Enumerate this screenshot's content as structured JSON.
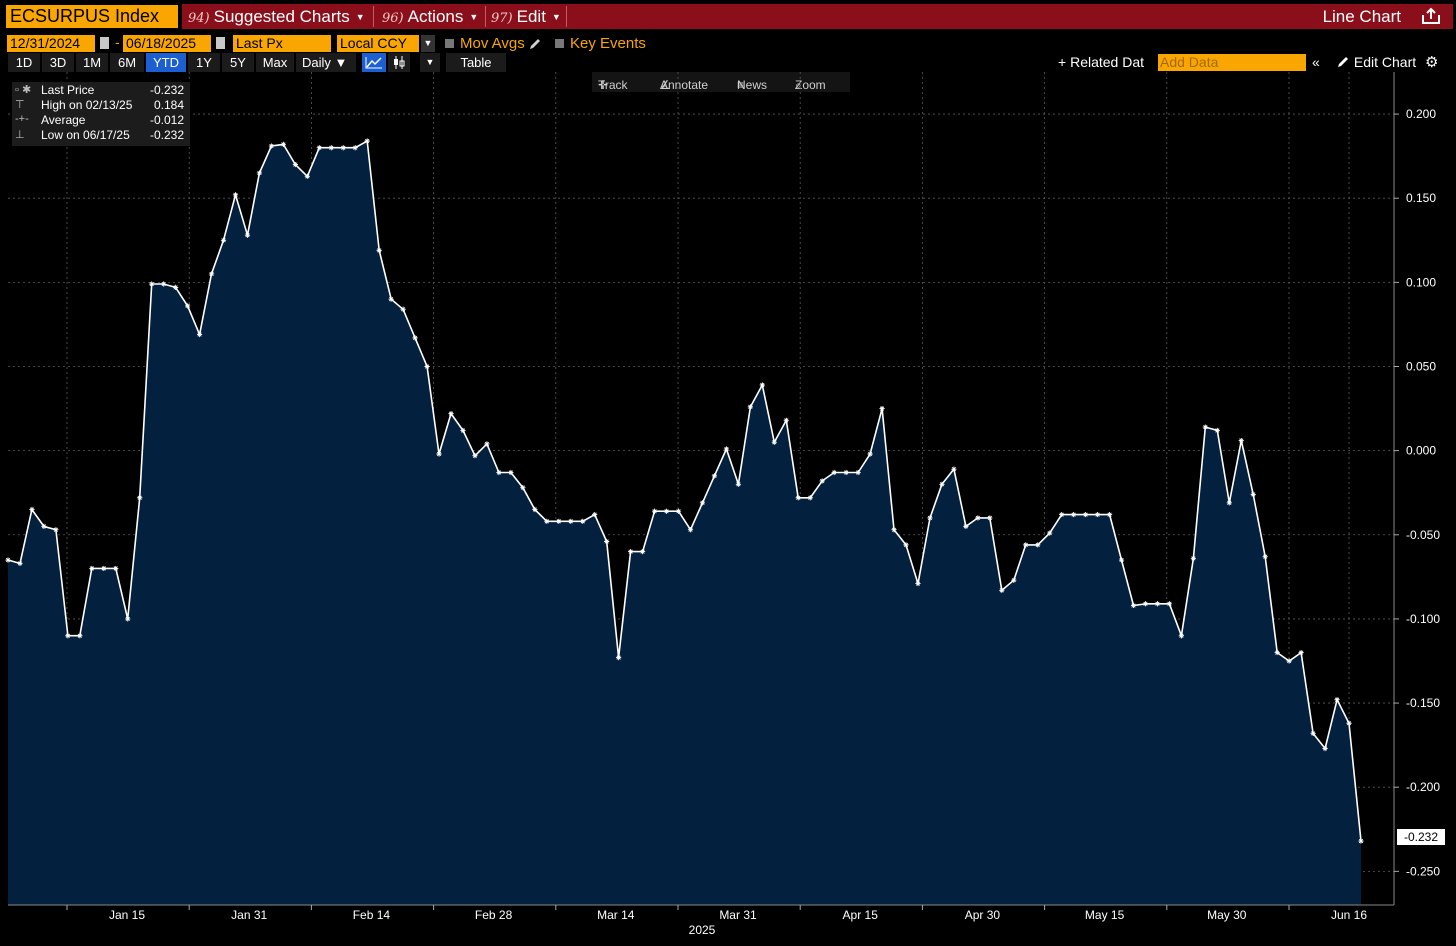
{
  "header": {
    "ticker": "ECSURPUS Index",
    "menus": [
      {
        "num": "94)",
        "label": "Suggested Charts"
      },
      {
        "num": "96)",
        "label": "Actions"
      },
      {
        "num": "97)",
        "label": "Edit"
      }
    ],
    "chart_type_label": "Line Chart"
  },
  "options": {
    "start_date": "12/31/2024",
    "end_date": "06/18/2025",
    "field": "Last Px",
    "currency": "Local CCY",
    "mov_avgs": "Mov Avgs",
    "key_events": "Key Events"
  },
  "periods": [
    "1D",
    "3D",
    "1M",
    "6M",
    "YTD",
    "1Y",
    "5Y",
    "Max"
  ],
  "active_period": "YTD",
  "frequency": "Daily",
  "table_label": "Table",
  "related_data_label": "Related Dat",
  "add_data_placeholder": "Add Data",
  "edit_chart_label": "Edit Chart",
  "toolbar": {
    "track": "Track",
    "annotate": "Annotate",
    "news": "News",
    "zoom": "Zoom"
  },
  "legend": [
    {
      "label": "Last Price",
      "value": "-0.232"
    },
    {
      "label": "High on 02/13/25",
      "value": "0.184"
    },
    {
      "label": "Average",
      "value": "-0.012"
    },
    {
      "label": "Low on 06/17/25",
      "value": "-0.232"
    }
  ],
  "last_value_tag": "-0.232",
  "colors": {
    "line": "#ffffff",
    "fill": "#04203f",
    "grid": "#5a5a5a",
    "accent": "#f9a600",
    "header": "#8b0f1b",
    "active": "#1b5fd0"
  },
  "chart_data": {
    "type": "area",
    "x_tick_labels": [
      "Jan 15",
      "Jan 31",
      "Feb 14",
      "Feb 28",
      "Mar 14",
      "Mar 31",
      "Apr 15",
      "Apr 30",
      "May 15",
      "May 30",
      "Jun 16"
    ],
    "x_year_label": "2025",
    "y_ticks": [
      0.2,
      0.15,
      0.1,
      0.05,
      0.0,
      -0.05,
      -0.1,
      -0.15,
      -0.2,
      -0.25
    ],
    "y_tick_labels": [
      "0.200",
      "0.150",
      "0.100",
      "0.050",
      "0.000",
      "-0.050",
      "-0.100",
      "-0.150",
      "-0.200",
      "-0.250"
    ],
    "ylim": [
      -0.27,
      0.225
    ],
    "grid": true,
    "series": [
      {
        "values": [
          -0.065,
          -0.067,
          -0.035,
          -0.045,
          -0.047,
          -0.11,
          -0.11,
          -0.07,
          -0.07,
          -0.07,
          -0.1,
          -0.028,
          0.099,
          0.099,
          0.097,
          0.086,
          0.069,
          0.105,
          0.125,
          0.152,
          0.128,
          0.165,
          0.181,
          0.182,
          0.17,
          0.163,
          0.18,
          0.18,
          0.18,
          0.18,
          0.184,
          0.119,
          0.09,
          0.084,
          0.067,
          0.05,
          -0.002,
          0.022,
          0.012,
          -0.003,
          0.004,
          -0.013,
          -0.013,
          -0.022,
          -0.035,
          -0.042,
          -0.042,
          -0.042,
          -0.042,
          -0.038,
          -0.054,
          -0.123,
          -0.06,
          -0.06,
          -0.036,
          -0.036,
          -0.036,
          -0.047,
          -0.031,
          -0.015,
          0.001,
          -0.02,
          0.026,
          0.039,
          0.005,
          0.018,
          -0.028,
          -0.028,
          -0.018,
          -0.013,
          -0.013,
          -0.013,
          -0.002,
          0.025,
          -0.047,
          -0.056,
          -0.079,
          -0.04,
          -0.02,
          -0.011,
          -0.045,
          -0.04,
          -0.04,
          -0.083,
          -0.077,
          -0.056,
          -0.056,
          -0.049,
          -0.038,
          -0.038,
          -0.038,
          -0.038,
          -0.038,
          -0.065,
          -0.092,
          -0.091,
          -0.091,
          -0.091,
          -0.11,
          -0.064,
          0.014,
          0.012,
          -0.031,
          0.006,
          -0.026,
          -0.063,
          -0.12,
          -0.125,
          -0.12,
          -0.168,
          -0.177,
          -0.148,
          -0.162,
          -0.232
        ]
      }
    ]
  }
}
